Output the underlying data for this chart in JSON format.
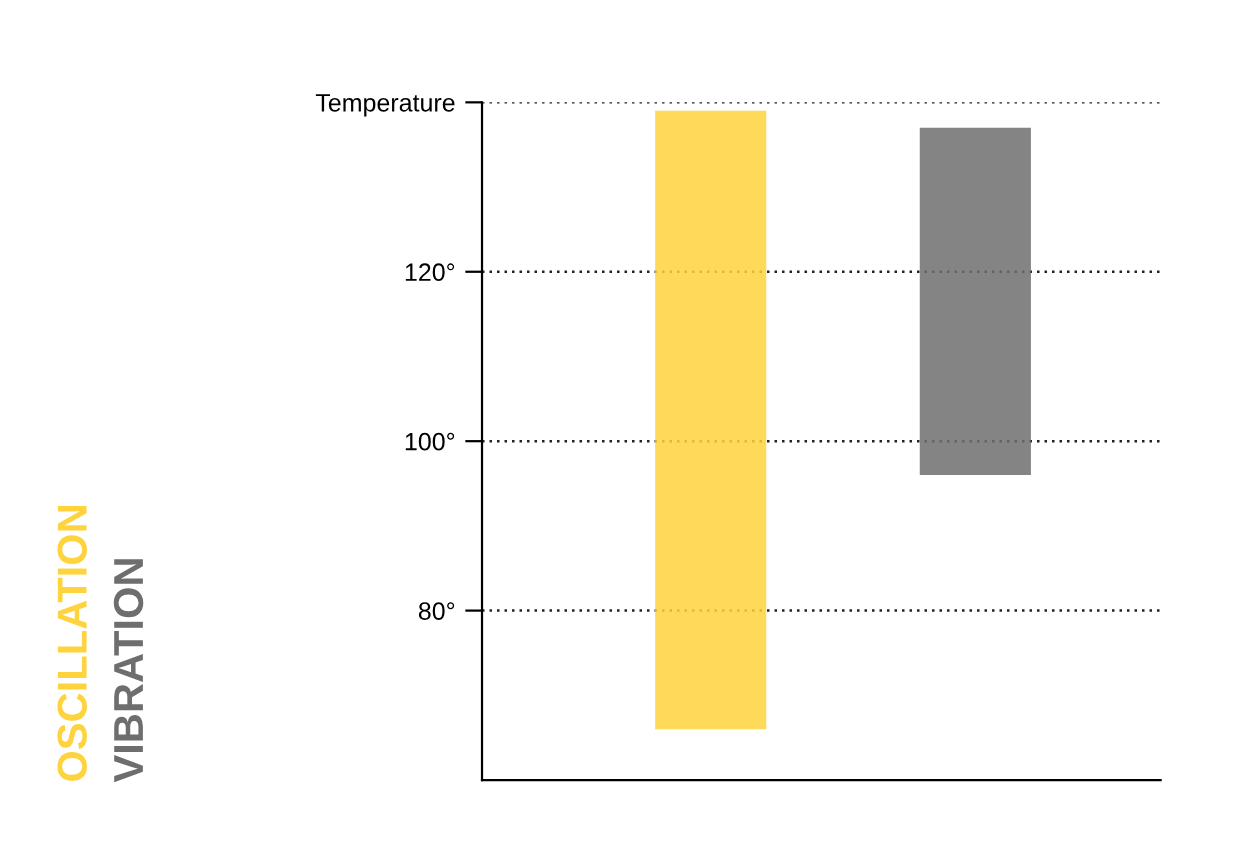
{
  "chart_data": {
    "type": "bar",
    "categories": [
      null,
      null
    ],
    "series": [
      {
        "name": "OSCILLATION",
        "color": "#ffd33d",
        "values": [
          73,
          null
        ],
        "base": [
          66,
          null
        ]
      },
      {
        "name": "VIBRATION",
        "color": "#6e6e6e",
        "values": [
          null,
          41
        ],
        "base": [
          null,
          96
        ]
      }
    ],
    "ylim": [
      60,
      140
    ],
    "yticks": [
      {
        "value": 80,
        "label": "80°"
      },
      {
        "value": 100,
        "label": "100°"
      },
      {
        "value": 120,
        "label": "120°"
      },
      {
        "value": 140,
        "label": "Temperature"
      }
    ],
    "grid": "y",
    "legend": "left"
  }
}
